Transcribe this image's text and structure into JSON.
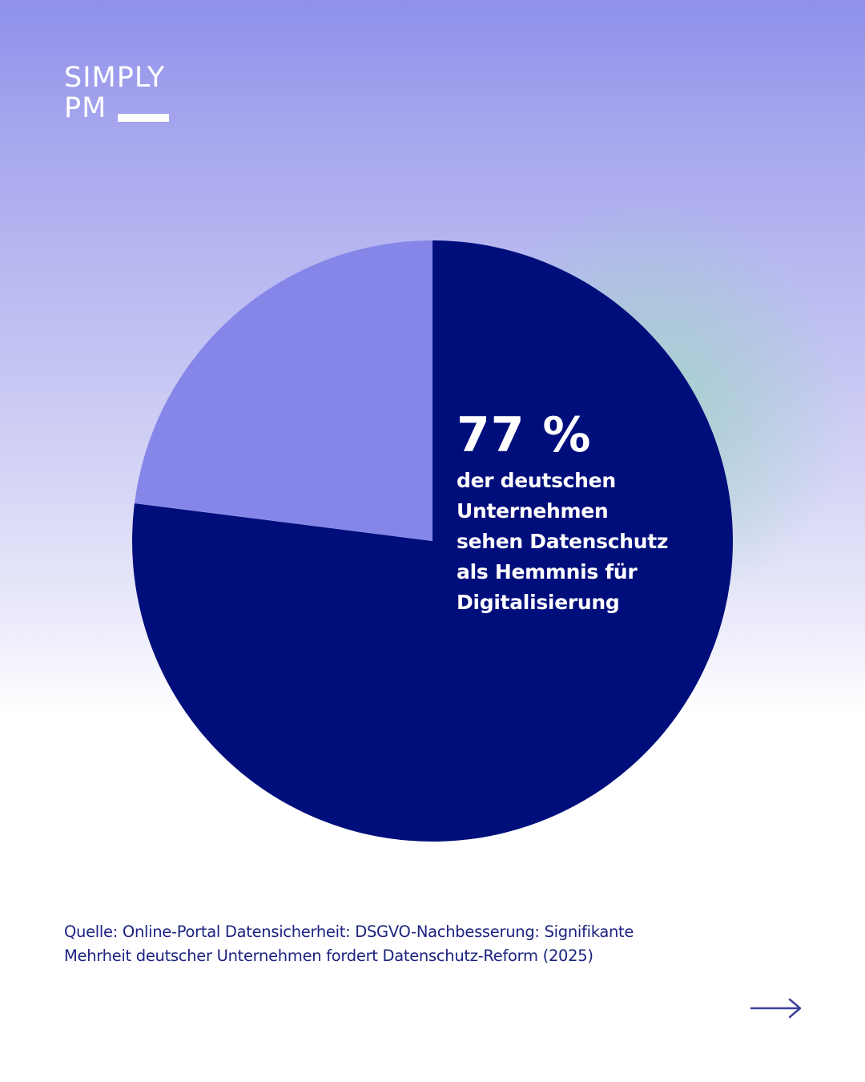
{
  "brand": {
    "line1": "SIMPLY",
    "line2": "PM"
  },
  "colors": {
    "main_slice": "#000e7c",
    "rest_slice": "#8686e9",
    "text_light": "#ffffff",
    "source_text": "#1b2480",
    "arrow": "#3d3f9c"
  },
  "callout": {
    "value": "77 %",
    "text": "der deutschen\nUnternehmen\nsehen Datenschutz\nals Hemmnis für\nDigitalisierung"
  },
  "source": "Quelle: Online-Portal Datensicherheit: DSGVO-Nachbesserung: Signifikante\nMehrheit deutscher Unternehmen fordert Datenschutz-Reform (2025)",
  "nav": {
    "next_icon": "arrow-right-icon"
  },
  "chart_data": {
    "type": "pie",
    "start": "12 o'clock",
    "direction": "clockwise",
    "values": [
      77,
      23
    ],
    "unit": "%",
    "slice_colors": [
      "#000e7c",
      "#8686e9"
    ],
    "legend": "none"
  }
}
